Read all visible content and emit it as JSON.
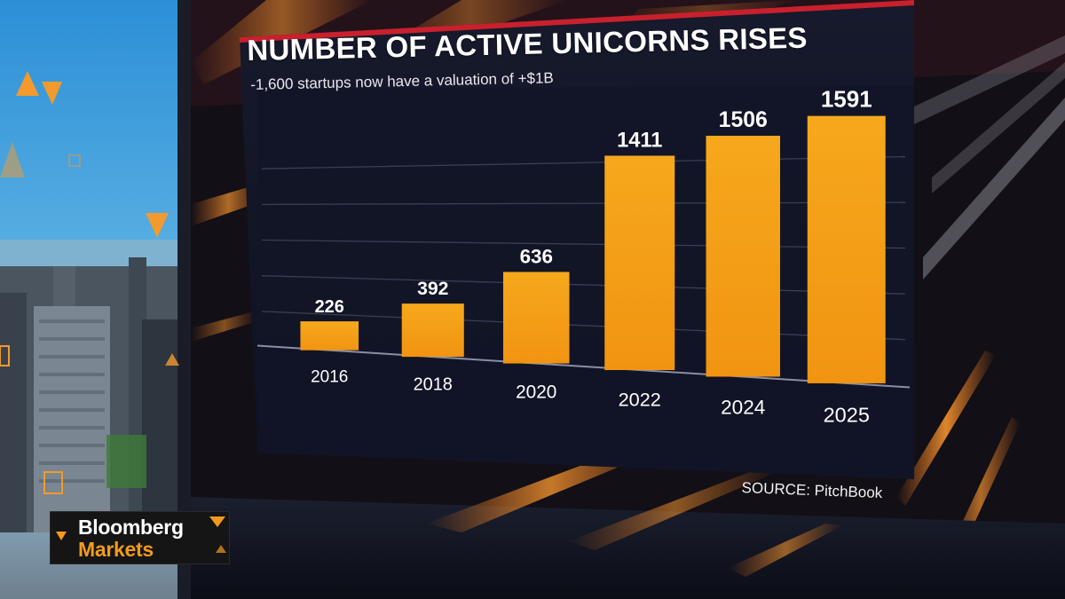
{
  "chart_data": {
    "type": "bar",
    "title": "NUMBER OF ACTIVE UNICORNS RISES",
    "subtitle": "-1,600 startups now have a valuation of +$1B",
    "categories": [
      "2016",
      "2018",
      "2020",
      "2022",
      "2024",
      "2025"
    ],
    "values": [
      226,
      392,
      636,
      1411,
      1506,
      1591
    ],
    "grid": true,
    "bar_color": "#f5a213",
    "source": "SOURCE: PitchBook"
  },
  "branding": {
    "line1": "Bloomberg",
    "line2": "Markets",
    "accent_color": "#f39a1c"
  }
}
